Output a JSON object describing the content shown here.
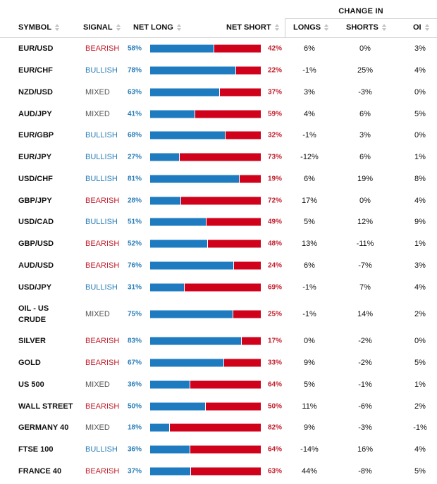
{
  "header": {
    "change_group": "CHANGE IN",
    "symbol": "SYMBOL",
    "signal": "SIGNAL",
    "net_long": "NET LONG",
    "net_short": "NET SHORT",
    "longs": "LONGS",
    "shorts": "SHORTS",
    "oi": "OI"
  },
  "colors": {
    "long": "#1f7bc0",
    "short": "#d0021b",
    "bearish": "#c2202e",
    "bullish": "#2a7db8",
    "mixed": "#555555"
  },
  "rows": [
    {
      "symbol": "EUR/USD",
      "signal": "BEARISH",
      "net_long": "58%",
      "net_short": "42%",
      "long_pct": 58,
      "longs": "6%",
      "shorts": "0%",
      "oi": "3%"
    },
    {
      "symbol": "EUR/CHF",
      "signal": "BULLISH",
      "net_long": "78%",
      "net_short": "22%",
      "long_pct": 78,
      "longs": "-1%",
      "shorts": "25%",
      "oi": "4%"
    },
    {
      "symbol": "NZD/USD",
      "signal": "MIXED",
      "net_long": "63%",
      "net_short": "37%",
      "long_pct": 63,
      "longs": "3%",
      "shorts": "-3%",
      "oi": "0%"
    },
    {
      "symbol": "AUD/JPY",
      "signal": "MIXED",
      "net_long": "41%",
      "net_short": "59%",
      "long_pct": 41,
      "longs": "4%",
      "shorts": "6%",
      "oi": "5%"
    },
    {
      "symbol": "EUR/GBP",
      "signal": "BULLISH",
      "net_long": "68%",
      "net_short": "32%",
      "long_pct": 68,
      "longs": "-1%",
      "shorts": "3%",
      "oi": "0%"
    },
    {
      "symbol": "EUR/JPY",
      "signal": "BULLISH",
      "net_long": "27%",
      "net_short": "73%",
      "long_pct": 27,
      "longs": "-12%",
      "shorts": "6%",
      "oi": "1%"
    },
    {
      "symbol": "USD/CHF",
      "signal": "BULLISH",
      "net_long": "81%",
      "net_short": "19%",
      "long_pct": 81,
      "longs": "6%",
      "shorts": "19%",
      "oi": "8%"
    },
    {
      "symbol": "GBP/JPY",
      "signal": "BEARISH",
      "net_long": "28%",
      "net_short": "72%",
      "long_pct": 28,
      "longs": "17%",
      "shorts": "0%",
      "oi": "4%"
    },
    {
      "symbol": "USD/CAD",
      "signal": "BULLISH",
      "net_long": "51%",
      "net_short": "49%",
      "long_pct": 51,
      "longs": "5%",
      "shorts": "12%",
      "oi": "9%"
    },
    {
      "symbol": "GBP/USD",
      "signal": "BEARISH",
      "net_long": "52%",
      "net_short": "48%",
      "long_pct": 52,
      "longs": "13%",
      "shorts": "-11%",
      "oi": "1%"
    },
    {
      "symbol": "AUD/USD",
      "signal": "BEARISH",
      "net_long": "76%",
      "net_short": "24%",
      "long_pct": 76,
      "longs": "6%",
      "shorts": "-7%",
      "oi": "3%"
    },
    {
      "symbol": "USD/JPY",
      "signal": "BULLISH",
      "net_long": "31%",
      "net_short": "69%",
      "long_pct": 31,
      "longs": "-1%",
      "shorts": "7%",
      "oi": "4%"
    },
    {
      "symbol": "OIL - US CRUDE",
      "symbol_line1": "OIL - US",
      "symbol_line2": "CRUDE",
      "signal": "MIXED",
      "net_long": "75%",
      "net_short": "25%",
      "long_pct": 75,
      "longs": "-1%",
      "shorts": "14%",
      "oi": "2%"
    },
    {
      "symbol": "SILVER",
      "signal": "BEARISH",
      "net_long": "83%",
      "net_short": "17%",
      "long_pct": 83,
      "longs": "0%",
      "shorts": "-2%",
      "oi": "0%"
    },
    {
      "symbol": "GOLD",
      "signal": "BEARISH",
      "net_long": "67%",
      "net_short": "33%",
      "long_pct": 67,
      "longs": "9%",
      "shorts": "-2%",
      "oi": "5%"
    },
    {
      "symbol": "US 500",
      "signal": "MIXED",
      "net_long": "36%",
      "net_short": "64%",
      "long_pct": 36,
      "longs": "5%",
      "shorts": "-1%",
      "oi": "1%"
    },
    {
      "symbol": "WALL STREET",
      "signal": "BEARISH",
      "net_long": "50%",
      "net_short": "50%",
      "long_pct": 50,
      "longs": "11%",
      "shorts": "-6%",
      "oi": "2%"
    },
    {
      "symbol": "GERMANY 40",
      "signal": "MIXED",
      "net_long": "18%",
      "net_short": "82%",
      "long_pct": 18,
      "longs": "9%",
      "shorts": "-3%",
      "oi": "-1%"
    },
    {
      "symbol": "FTSE 100",
      "signal": "BULLISH",
      "net_long": "36%",
      "net_short": "64%",
      "long_pct": 36,
      "longs": "-14%",
      "shorts": "16%",
      "oi": "4%"
    },
    {
      "symbol": "FRANCE 40",
      "signal": "BEARISH",
      "net_long": "37%",
      "net_short": "63%",
      "long_pct": 37,
      "longs": "44%",
      "shorts": "-8%",
      "oi": "5%"
    }
  ]
}
